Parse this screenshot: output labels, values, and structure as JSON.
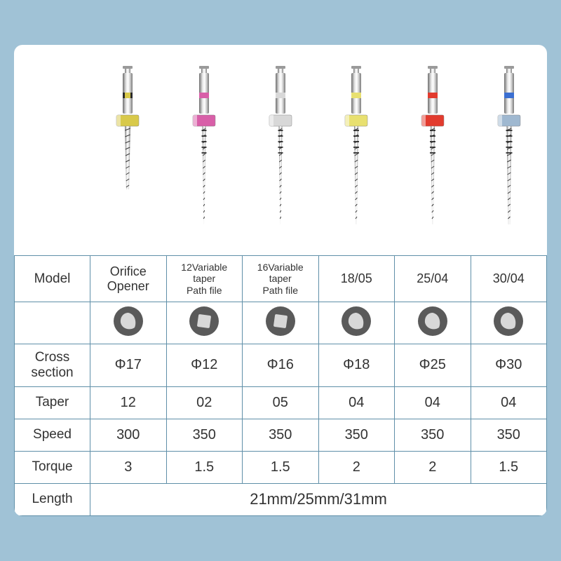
{
  "background_color": "#a0c2d6",
  "card_bg": "#ffffff",
  "border_color": "#5f8fa8",
  "text_color": "#333333",
  "files": [
    {
      "band_color": "#d8c94a",
      "band_stripe": "#2a2a2a",
      "collar_color": "#d8c94a",
      "flute_len": 90,
      "flute_width": 8,
      "taper_tip": 0.5,
      "marked": false
    },
    {
      "band_color": "#d85fa8",
      "band_stripe": null,
      "collar_color": "#d85fa8",
      "flute_len": 140,
      "flute_width": 5,
      "taper_tip": 0.2,
      "marked": true
    },
    {
      "band_color": "#d8d8d8",
      "band_stripe": null,
      "collar_color": "#d8d8d8",
      "flute_len": 140,
      "flute_width": 5,
      "taper_tip": 0.2,
      "marked": true
    },
    {
      "band_color": "#e8e070",
      "band_stripe": null,
      "collar_color": "#e8e070",
      "flute_len": 140,
      "flute_width": 6,
      "taper_tip": 0.3,
      "marked": true
    },
    {
      "band_color": "#e23b2e",
      "band_stripe": null,
      "collar_color": "#e23b2e",
      "flute_len": 140,
      "flute_width": 6,
      "taper_tip": 0.3,
      "marked": true
    },
    {
      "band_color": "#3b6fd1",
      "band_stripe": null,
      "collar_color": "#9fb8d0",
      "flute_len": 140,
      "flute_width": 7,
      "taper_tip": 0.4,
      "marked": true
    }
  ],
  "cross_shapes": [
    "tri",
    "square",
    "square",
    "tri",
    "tri",
    "tri"
  ],
  "cross_bg": "#5a5a5a",
  "cross_core": "#d8d8d8",
  "headers": {
    "model": "Model",
    "cross": "Cross\nsection",
    "taper": "Taper",
    "speed": "Speed",
    "torque": "Torque",
    "length": "Length"
  },
  "rows": {
    "model": [
      {
        "text": "Orifice\nOpener",
        "small": false
      },
      {
        "text": "12Variable\ntaper\nPath file",
        "small": true
      },
      {
        "text": "16Variable\ntaper\nPath file",
        "small": true
      },
      {
        "text": "18/05",
        "small": false
      },
      {
        "text": "25/04",
        "small": false
      },
      {
        "text": "30/04",
        "small": false
      }
    ],
    "cross": [
      "Φ17",
      "Φ12",
      "Φ16",
      "Φ18",
      "Φ25",
      "Φ30"
    ],
    "taper": [
      "12",
      "02",
      "05",
      "04",
      "04",
      "04"
    ],
    "speed": [
      "300",
      "350",
      "350",
      "350",
      "350",
      "350"
    ],
    "torque": [
      "3",
      "1.5",
      "1.5",
      "2",
      "2",
      "1.5"
    ],
    "length": "21mm/25mm/31mm"
  }
}
